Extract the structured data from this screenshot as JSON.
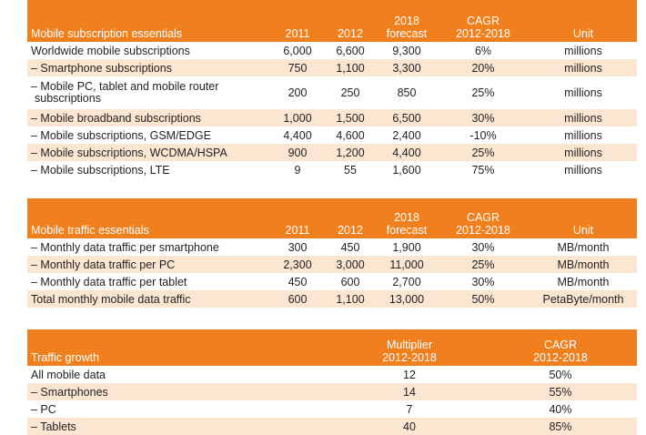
{
  "subscriptions": {
    "headers": [
      "Mobile subscription essentials",
      "2011",
      "2012",
      "2018\nforecast",
      "CAGR\n2012-2018",
      "Unit"
    ],
    "rows": [
      [
        "Worldwide mobile subscriptions",
        "6,000",
        "6,600",
        "9,300",
        "6%",
        "millions"
      ],
      [
        "– Smartphone subscriptions",
        "750",
        "1,100",
        "3,300",
        "20%",
        "millions"
      ],
      [
        "– Mobile PC, tablet and mobile router subscriptions",
        "200",
        "250",
        "850",
        "25%",
        "millions"
      ],
      [
        "– Mobile broadband subscriptions",
        "1,000",
        "1,500",
        "6,500",
        "30%",
        "millions"
      ],
      [
        "– Mobile subscriptions, GSM/EDGE",
        "4,400",
        "4,600",
        "2,400",
        "-10%",
        "millions"
      ],
      [
        "– Mobile subscriptions, WCDMA/HSPA",
        "900",
        "1,200",
        "4,400",
        "25%",
        "millions"
      ],
      [
        "– Mobile subscriptions, LTE",
        "9",
        "55",
        "1,600",
        "75%",
        "millions"
      ]
    ]
  },
  "traffic": {
    "headers": [
      "Mobile traffic essentials",
      "2011",
      "2012",
      "2018\nforecast",
      "CAGR\n2012-2018",
      "Unit"
    ],
    "rows": [
      [
        "– Monthly data traffic per smartphone",
        "300",
        "450",
        "1,900",
        "30%",
        "MB/month"
      ],
      [
        "– Monthly data traffic per PC",
        "2,300",
        "3,000",
        "11,000",
        "25%",
        "MB/month"
      ],
      [
        "– Monthly data traffic per tablet",
        "450",
        "600",
        "2,700",
        "30%",
        "MB/month"
      ],
      [
        "Total monthly mobile data traffic",
        "600",
        "1,100",
        "13,000",
        "50%",
        "PetaByte/month"
      ]
    ]
  },
  "growth": {
    "headers": [
      "Traffic growth",
      "Multiplier\n2012-2018",
      "CAGR\n2012-2018"
    ],
    "rows": [
      [
        "All mobile data",
        "12",
        "50%"
      ],
      [
        "– Smartphones",
        "14",
        "55%"
      ],
      [
        "– PC",
        "7",
        "40%"
      ],
      [
        "– Tablets",
        "40",
        "85%"
      ]
    ]
  },
  "colors": {
    "header_bg": "#f07f1e",
    "alt_row_bg": "#fbe6d2",
    "text": "#231f20"
  }
}
